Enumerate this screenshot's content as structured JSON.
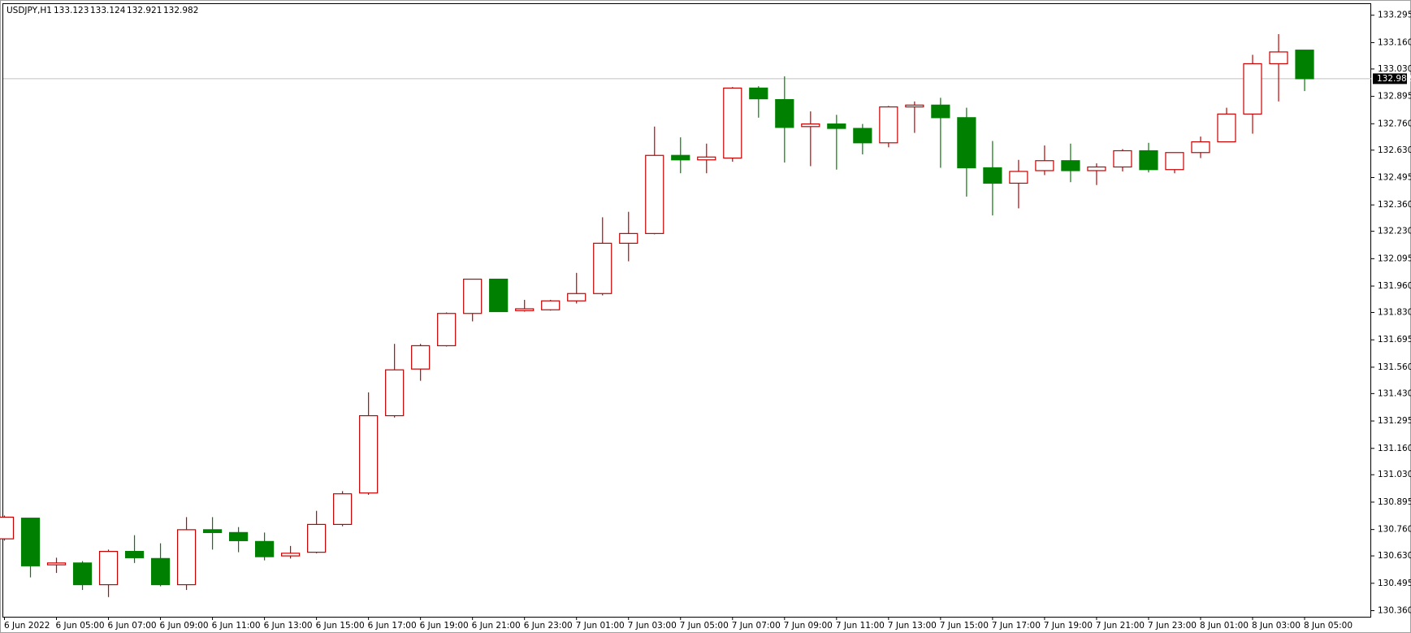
{
  "chart_data": {
    "type": "candlestick",
    "title": "USDJPY,H1",
    "categories": [
      "6 Jun 2022",
      null,
      "6 Jun 05:00",
      null,
      "6 Jun 07:00",
      null,
      "6 Jun 09:00",
      null,
      "6 Jun 11:00",
      null,
      "6 Jun 13:00",
      null,
      "6 Jun 15:00",
      null,
      "6 Jun 17:00",
      null,
      "6 Jun 19:00",
      null,
      "6 Jun 21:00",
      null,
      "6 Jun 23:00",
      null,
      "7 Jun 01:00",
      null,
      "7 Jun 03:00",
      null,
      "7 Jun 05:00",
      null,
      "7 Jun 07:00",
      null,
      "7 Jun 09:00",
      null,
      "7 Jun 11:00",
      null,
      "7 Jun 13:00",
      null,
      "7 Jun 15:00",
      null,
      "7 Jun 17:00",
      null,
      "7 Jun 19:00",
      null,
      "7 Jun 21:00",
      null,
      "7 Jun 23:00",
      null,
      "8 Jun 01:00",
      null,
      "8 Jun 03:00",
      null,
      "8 Jun 05:00"
    ],
    "open": [
      130.714,
      130.816,
      130.586,
      130.595,
      130.488,
      130.652,
      130.617,
      130.488,
      130.759,
      130.745,
      130.701,
      130.63,
      130.648,
      130.785,
      130.94,
      131.321,
      131.551,
      131.666,
      131.825,
      131.994,
      131.839,
      131.843,
      131.887,
      131.923,
      132.171,
      132.219,
      132.604,
      132.582,
      132.591,
      132.936,
      132.879,
      132.746,
      132.759,
      132.737,
      132.666,
      132.843,
      132.852,
      132.79,
      132.543,
      132.467,
      132.529,
      132.578,
      132.529,
      132.547,
      132.627,
      132.534,
      132.618,
      132.671,
      132.808,
      133.056,
      133.123
    ],
    "high": [
      130.829,
      130.816,
      130.621,
      130.604,
      130.661,
      130.732,
      130.692,
      130.821,
      130.821,
      130.772,
      130.745,
      130.679,
      130.852,
      130.949,
      131.436,
      131.675,
      131.675,
      131.83,
      131.994,
      131.994,
      131.892,
      131.892,
      132.025,
      132.299,
      132.326,
      132.746,
      132.693,
      132.662,
      132.941,
      132.945,
      132.994,
      132.821,
      132.804,
      132.759,
      132.848,
      132.87,
      132.888,
      132.839,
      132.675,
      132.582,
      132.653,
      132.662,
      132.565,
      132.635,
      132.666,
      132.618,
      132.697,
      132.839,
      133.1,
      133.202,
      133.124
    ],
    "low": [
      130.705,
      130.524,
      130.546,
      130.462,
      130.427,
      130.595,
      130.48,
      130.462,
      130.661,
      130.648,
      130.608,
      130.617,
      130.643,
      130.776,
      130.931,
      131.312,
      131.493,
      131.662,
      131.786,
      131.834,
      131.834,
      131.839,
      131.874,
      131.914,
      132.082,
      132.215,
      132.516,
      132.516,
      132.573,
      132.79,
      132.569,
      132.551,
      132.534,
      132.609,
      132.644,
      132.715,
      132.543,
      132.401,
      132.308,
      132.343,
      132.507,
      132.472,
      132.458,
      132.525,
      132.52,
      132.516,
      132.591,
      132.671,
      132.711,
      132.87,
      132.921
    ],
    "close": [
      130.821,
      130.581,
      130.595,
      130.488,
      130.652,
      130.621,
      130.488,
      130.759,
      130.745,
      130.705,
      130.626,
      130.643,
      130.785,
      130.936,
      131.321,
      131.547,
      131.666,
      131.825,
      131.994,
      131.834,
      131.848,
      131.887,
      131.923,
      132.171,
      132.219,
      132.604,
      132.582,
      132.596,
      132.936,
      132.883,
      132.742,
      132.759,
      132.737,
      132.666,
      132.843,
      132.852,
      132.79,
      132.543,
      132.467,
      132.525,
      132.578,
      132.529,
      132.547,
      132.627,
      132.534,
      132.618,
      132.671,
      132.808,
      133.056,
      133.114,
      132.982
    ],
    "up_color": "#c80000",
    "down_color": "#008000",
    "price_line_color": "#c0c0c0",
    "ylim": [
      130.33,
      133.35
    ],
    "yticks": [
      133.295,
      {
        "value": 133.16,
        "label": "133.160"
      },
      {
        "value": 133.03,
        "label": "133.030"
      },
      132.895,
      {
        "value": 132.76,
        "label": "132.760"
      },
      {
        "value": 132.63,
        "label": "132.630"
      },
      132.495,
      {
        "value": 132.36,
        "label": "132.360"
      },
      {
        "value": 132.23,
        "label": "132.230"
      },
      132.095,
      {
        "value": 131.96,
        "label": "131.960"
      },
      {
        "value": 131.83,
        "label": "131.830"
      },
      131.695,
      {
        "value": 131.56,
        "label": "131.560"
      },
      {
        "value": 131.43,
        "label": "131.430"
      },
      131.295,
      {
        "value": 131.16,
        "label": "131.160"
      },
      {
        "value": 131.03,
        "label": "131.030"
      },
      130.895,
      {
        "value": 130.76,
        "label": "130.760"
      },
      {
        "value": 130.63,
        "label": "130.630"
      },
      130.495,
      {
        "value": 130.36,
        "label": "130.360"
      }
    ],
    "grid": false
  }
}
